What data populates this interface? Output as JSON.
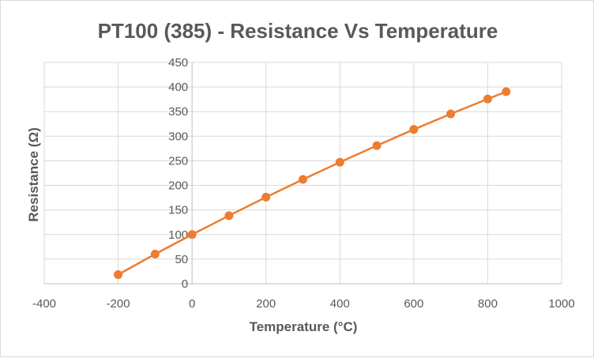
{
  "chart_data": {
    "type": "scatter",
    "title": "PT100 (385) - Resistance Vs Temperature",
    "xlabel": "Temperature (°C)",
    "ylabel": "Resistance (Ω)",
    "xlim": [
      -400,
      1000
    ],
    "ylim": [
      0,
      450
    ],
    "x_ticks": [
      -400,
      -200,
      0,
      200,
      400,
      600,
      800,
      1000
    ],
    "y_ticks": [
      0,
      50,
      100,
      150,
      200,
      250,
      300,
      350,
      400,
      450
    ],
    "grid": true,
    "legend": "none",
    "series": [
      {
        "color": "#ed7d31",
        "line": true,
        "markers": true,
        "x": [
          -200,
          -100,
          0,
          100,
          200,
          300,
          400,
          500,
          600,
          700,
          800,
          850
        ],
        "y": [
          18.5,
          60.3,
          100,
          138.5,
          175.9,
          212.1,
          247.1,
          280.9,
          313.7,
          345.3,
          375.7,
          390.5
        ]
      }
    ]
  }
}
